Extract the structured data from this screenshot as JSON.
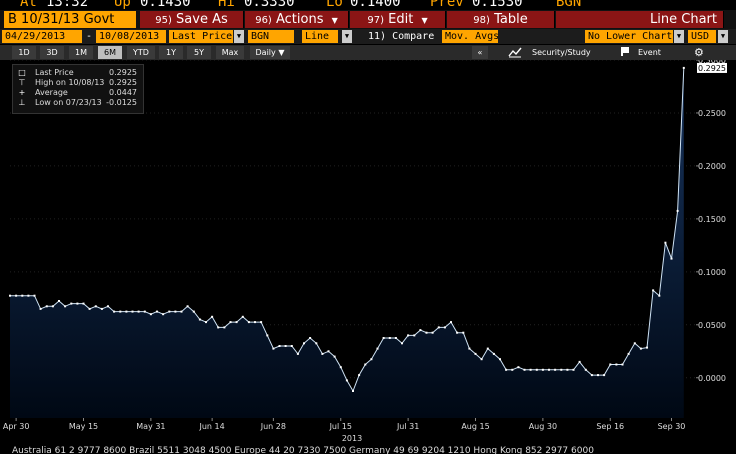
{
  "ticker": {
    "at_label": "At",
    "at_value": "13:32",
    "up_label": "Up",
    "up_value": "0.1430",
    "hi_label": "Hi",
    "hi_value": "0.3330",
    "lo_label": "Lo",
    "lo_value": "0.1400",
    "prev_label": "Prev",
    "prev_value": "0.1530",
    "source": "BGN"
  },
  "toolbar": {
    "security": "B 10/31/13 Govt",
    "save_num": "95)",
    "save_label": "Save As",
    "actions_num": "96)",
    "actions_label": "Actions",
    "edit_num": "97)",
    "edit_label": "Edit",
    "table_num": "98)",
    "table_label": "Table",
    "view_label": "Line Chart"
  },
  "options": {
    "start_date": "04/29/2013",
    "dash": "-",
    "end_date": "10/08/2013",
    "field": "Last Price",
    "source": "BGN",
    "chart_style": "Line",
    "compare": "11) Compare",
    "mov_avgs": "Mov. Avgs",
    "lower_chart": "No Lower Chart",
    "currency": "USD"
  },
  "periods": {
    "items": [
      "1D",
      "3D",
      "1M",
      "6M",
      "YTD",
      "1Y",
      "5Y",
      "Max"
    ],
    "active": "6M",
    "frequency": "Daily",
    "collapse": "«",
    "security_study": "Security/Study",
    "event": "Event",
    "settings": "⚙"
  },
  "legend": {
    "last_label": "Last Price",
    "last_value": "0.2925",
    "high_label": "High on 10/08/13",
    "high_value": "0.2925",
    "avg_label": "Average",
    "avg_value": "0.0447",
    "low_label": "Low on 07/23/13",
    "low_value": "-0.0125"
  },
  "chart_data": {
    "type": "area",
    "x_tick_labels": [
      "Apr 30",
      "May 15",
      "May 31",
      "Jun 14",
      "Jun 28",
      "Jul 15",
      "Jul 31",
      "Aug 15",
      "Aug 30",
      "Sep 16",
      "Sep 30"
    ],
    "year_label": "2013",
    "y_tick_labels": [
      "0.3000",
      "0.2500",
      "0.2000",
      "0.1500",
      "0.1000",
      "0.0500",
      "0.0000"
    ],
    "ylim": [
      -0.038,
      0.3
    ],
    "last_value_tag": "0.2925",
    "x_range": [
      0,
      112
    ],
    "x_tick_positions": [
      1,
      12,
      23,
      33,
      43,
      54,
      65,
      76,
      87,
      98,
      108
    ],
    "line_color": "#cfe3f5",
    "fill_top": "#18355f",
    "fill_bottom": "#000814",
    "values": [
      0.0775,
      0.0775,
      0.0775,
      0.0775,
      0.0775,
      0.065,
      0.0675,
      0.0675,
      0.0725,
      0.0675,
      0.07,
      0.07,
      0.07,
      0.065,
      0.0675,
      0.065,
      0.0675,
      0.0625,
      0.0625,
      0.0625,
      0.0625,
      0.0625,
      0.0625,
      0.06,
      0.0625,
      0.06,
      0.0625,
      0.0625,
      0.0625,
      0.0675,
      0.0625,
      0.055,
      0.0525,
      0.0575,
      0.0475,
      0.0475,
      0.0525,
      0.0525,
      0.0575,
      0.0525,
      0.0525,
      0.0525,
      0.04,
      0.0275,
      0.03,
      0.03,
      0.03,
      0.0225,
      0.0325,
      0.0375,
      0.0325,
      0.0225,
      0.025,
      0.02,
      0.01,
      -0.0025,
      -0.0125,
      0.0025,
      0.0125,
      0.0175,
      0.0275,
      0.0375,
      0.0375,
      0.0375,
      0.0325,
      0.04,
      0.04,
      0.045,
      0.0425,
      0.0425,
      0.0475,
      0.0475,
      0.0525,
      0.0425,
      0.0425,
      0.0275,
      0.0225,
      0.0175,
      0.0275,
      0.0225,
      0.0175,
      0.0075,
      0.0075,
      0.01,
      0.0075,
      0.0075,
      0.0075,
      0.0075,
      0.0075,
      0.0075,
      0.0075,
      0.0075,
      0.0075,
      0.015,
      0.0075,
      0.0025,
      0.0025,
      0.0025,
      0.0125,
      0.0125,
      0.0125,
      0.0225,
      0.0325,
      0.0275,
      0.0285,
      0.0825,
      0.0775,
      0.1275,
      0.1125,
      0.1575,
      0.2925
    ]
  },
  "footer": {
    "text": "Australia 61 2 9777 8600 Brazil 5511 3048 4500 Europe 44 20 7330 7500 Germany 49 69 9204 1210 Hong Kong 852 2977 6000"
  }
}
